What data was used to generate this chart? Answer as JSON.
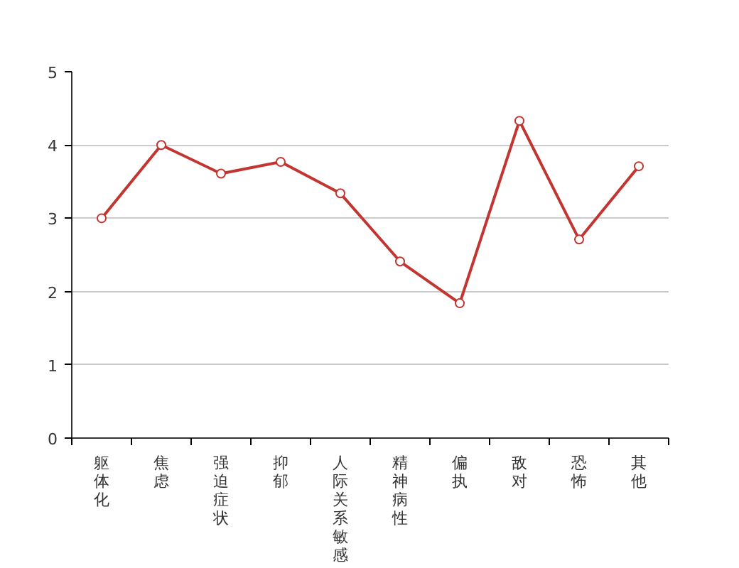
{
  "chart_data": {
    "type": "line",
    "categories": [
      "躯体化",
      "焦虑",
      "强迫症状",
      "抑郁",
      "人际关系敏感",
      "精神病性",
      "偏执",
      "敌对",
      "恐怖",
      "其他"
    ],
    "series": [
      {
        "color": "#c23531",
        "values": [
          3.0,
          4.0,
          3.61,
          3.77,
          3.34,
          2.41,
          1.84,
          4.33,
          2.71,
          3.71
        ]
      }
    ],
    "ylim": [
      0,
      5
    ],
    "yticks": [
      0,
      1,
      2,
      3,
      4,
      5
    ],
    "grid": "y",
    "marker": "circle",
    "line_style": "solid"
  }
}
